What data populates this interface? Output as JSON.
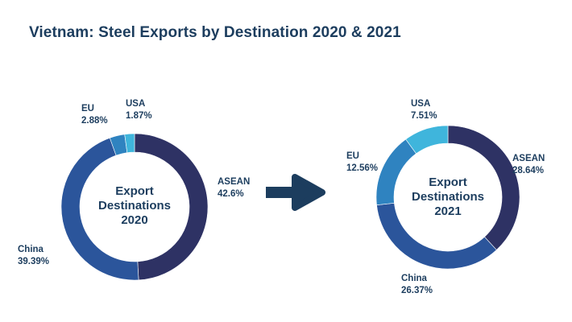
{
  "chart_data": {
    "type": "donut",
    "title": "Vietnam: Steel Exports by Destination 2020 & 2021",
    "charts": [
      {
        "center_label": [
          "Export",
          "Destinations",
          "2020"
        ],
        "slices": [
          {
            "name": "ASEAN",
            "value": 42.6,
            "display": "42.6%",
            "color": "#2e3264"
          },
          {
            "name": "China",
            "value": 39.39,
            "display": "39.39%",
            "color": "#2b559b"
          },
          {
            "name": "EU",
            "value": 2.88,
            "display": "2.88%",
            "color": "#2f83c0"
          },
          {
            "name": "USA",
            "value": 1.87,
            "display": "1.87%",
            "color": "#3fb5dc"
          }
        ]
      },
      {
        "center_label": [
          "Export",
          "Destinations",
          "2021"
        ],
        "slices": [
          {
            "name": "ASEAN",
            "value": 28.64,
            "display": "28.64%",
            "color": "#2e3264"
          },
          {
            "name": "China",
            "value": 26.37,
            "display": "26.37%",
            "color": "#2b559b"
          },
          {
            "name": "EU",
            "value": 12.56,
            "display": "12.56%",
            "color": "#2f83c0"
          },
          {
            "name": "USA",
            "value": 7.51,
            "display": "7.51%",
            "color": "#3fb5dc"
          }
        ]
      }
    ]
  },
  "arrow_color": "#1c3d5e"
}
